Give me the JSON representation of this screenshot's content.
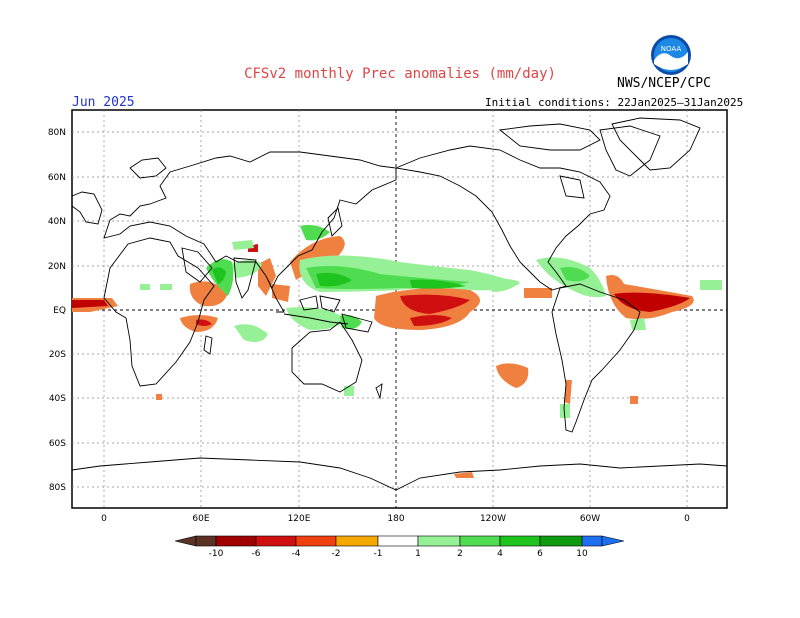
{
  "header": {
    "title": "CFSv2 monthly Prec anomalies (mm/day)",
    "month": "Jun 2025",
    "initial_conditions": "Initial conditions: 22Jan2025–31Jan2025",
    "agency": "NWS/NCEP/CPC",
    "logo_text": "NOAA"
  },
  "axes": {
    "lat_labels": [
      "80N",
      "60N",
      "40N",
      "20N",
      "EQ",
      "20S",
      "40S",
      "60S",
      "80S"
    ],
    "lon_labels": [
      "0",
      "60E",
      "120E",
      "180",
      "120W",
      "60W",
      "0"
    ]
  },
  "colorbar": {
    "labels": [
      "-10",
      "-6",
      "-4",
      "-2",
      "-1",
      "1",
      "2",
      "4",
      "6",
      "10"
    ],
    "colors": [
      "#5a3324",
      "#a00000",
      "#d01010",
      "#f04010",
      "#f08040",
      "#f5a800",
      "#ffffff",
      "#96f096",
      "#50dc50",
      "#1ec31e",
      "#0f9b0f",
      "#1e6ef0"
    ]
  },
  "colors": {
    "grid": "#888888",
    "coast": "#000000",
    "wet": "#50dc50",
    "dry": "#f08040"
  }
}
